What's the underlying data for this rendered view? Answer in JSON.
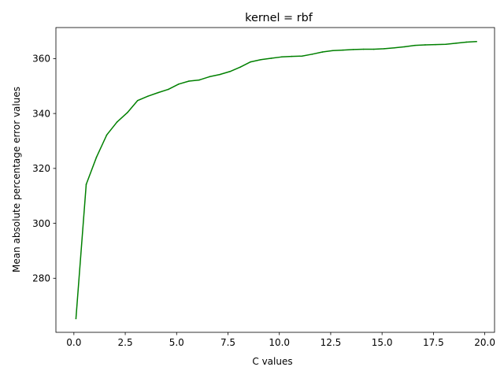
{
  "chart_data": {
    "type": "line",
    "title": "kernel = rbf",
    "xlabel": "C values",
    "ylabel": "Mean absolute percentage error values",
    "xlim": [
      -0.875,
      20.475
    ],
    "ylim": [
      260.3,
      371.3
    ],
    "xticks": [
      0.0,
      2.5,
      5.0,
      7.5,
      10.0,
      12.5,
      15.0,
      17.5,
      20.0
    ],
    "xtick_labels": [
      "0.0",
      "2.5",
      "5.0",
      "7.5",
      "10.0",
      "12.5",
      "15.0",
      "17.5",
      "20.0"
    ],
    "yticks": [
      280,
      300,
      320,
      340,
      360
    ],
    "ytick_labels": [
      "280",
      "300",
      "320",
      "340",
      "360"
    ],
    "grid": false,
    "legend": "none",
    "series": [
      {
        "color": "#008000",
        "x": [
          0.1,
          0.6,
          1.1,
          1.6,
          2.1,
          2.6,
          3.1,
          3.6,
          4.1,
          4.6,
          5.1,
          5.6,
          6.1,
          6.6,
          7.1,
          7.6,
          8.1,
          8.6,
          9.1,
          9.6,
          10.1,
          10.6,
          11.1,
          11.6,
          12.1,
          12.6,
          13.1,
          13.6,
          14.1,
          14.6,
          15.1,
          15.6,
          16.1,
          16.6,
          17.1,
          17.6,
          18.1,
          18.6,
          19.1,
          19.6
        ],
        "y": [
          265.3,
          314.2,
          324.1,
          332.2,
          336.9,
          340.3,
          344.7,
          346.3,
          347.6,
          348.8,
          350.7,
          351.8,
          352.2,
          353.4,
          354.2,
          355.3,
          356.9,
          358.8,
          359.6,
          360.1,
          360.6,
          360.8,
          360.9,
          361.6,
          362.4,
          362.9,
          363.1,
          363.3,
          363.4,
          363.4,
          363.6,
          363.9,
          364.3,
          364.8,
          365.0,
          365.1,
          365.2,
          365.6,
          366.0,
          366.2
        ]
      }
    ]
  }
}
